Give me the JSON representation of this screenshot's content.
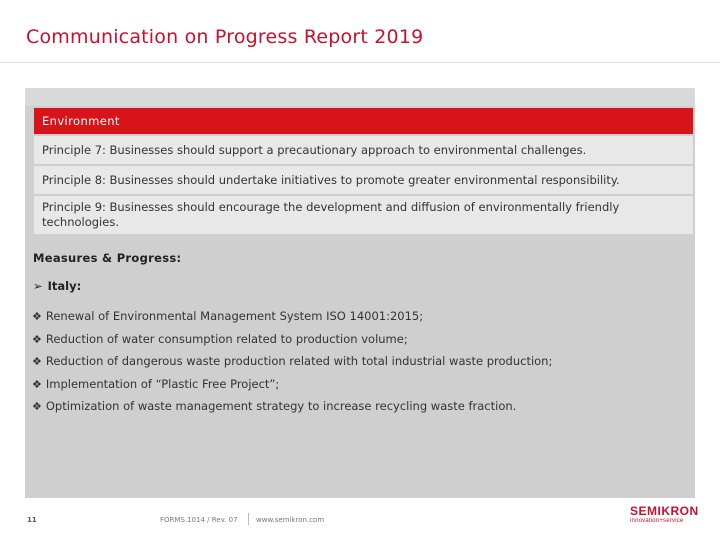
{
  "header": {
    "title": "Communication on Progress Report 2019"
  },
  "table": {
    "heading": "Environment",
    "principles": [
      "Principle 7: Businesses should support a precautionary approach to environmental challenges.",
      "Principle 8: Businesses should undertake initiatives to promote greater environmental responsibility.",
      "Principle 9: Businesses should encourage the development and diffusion of environmentally friendly technologies."
    ]
  },
  "measures": {
    "heading": "Measures & Progress:",
    "region": "Italy:",
    "items": [
      "Renewal of Environmental Management System ISO 14001:2015;",
      "Reduction of water consumption related to production volume;",
      "Reduction of dangerous waste production related with total industrial waste production;",
      "Implementation of “Plastic Free Project”;",
      "Optimization of waste management strategy to increase recycling waste fraction."
    ]
  },
  "footer": {
    "page_number": "11",
    "form": "FORMS.1014 / Rev. 07",
    "website": "www.semikron.com"
  },
  "logo": {
    "name": "SEMIKRON",
    "tagline": "innovation+service"
  },
  "colors": {
    "brand_red": "#d7141a",
    "panel_gray": "#cfcfcf",
    "row_gray": "#e8e8e8"
  }
}
